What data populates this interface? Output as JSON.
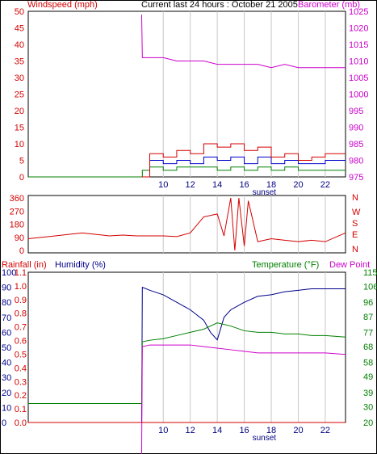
{
  "header": {
    "windspeed_label": "Windspeed (mph)",
    "title": "Current last 24 hours : October 21 2005",
    "barometer_label": "Barometer (mb)",
    "rainfall_label": "Rainfall (in)",
    "humidity_label": "Humidity (%)",
    "temperature_label": "Temperature (°F)",
    "dewpoint_label": "Dew Point"
  },
  "colors": {
    "wind": "#d40000",
    "barometer": "#cc00cc",
    "gust": "#0000cc",
    "wind_avg": "#008000",
    "direction": "#d40000",
    "humidity": "#00008b",
    "temperature": "#008000",
    "dewpoint": "#cc00cc",
    "rain": "#d40000",
    "grid": "#c8c8c8"
  },
  "chart_data": [
    {
      "id": "wind-barometer",
      "type": "line",
      "x_ticks": [
        "10",
        "12",
        "14",
        "16",
        "18",
        "20",
        "22"
      ],
      "x_annotation": "sunset",
      "left_axis": {
        "ticks": [
          "0",
          "5",
          "10",
          "15",
          "20",
          "25",
          "30",
          "35",
          "40",
          "45",
          "50"
        ],
        "ylim": [
          0,
          50
        ]
      },
      "right_axis": {
        "ticks": [
          "975",
          "980",
          "985",
          "990",
          "995",
          "1000",
          "1005",
          "1010",
          "1015",
          "1020",
          "1025"
        ],
        "ylim": [
          975,
          1025
        ]
      },
      "left_axis_mid_ticks": [
        "0",
        "5",
        "10",
        "15",
        "20",
        "25",
        "30",
        "35",
        "40",
        "45",
        "50"
      ],
      "lower_band_ticks": [
        "0",
        "5",
        "10",
        "15",
        "20",
        "25",
        "30",
        "35",
        "40",
        "45",
        "50"
      ],
      "series": [
        {
          "key": "barometer",
          "axis": "right",
          "x": [
            8.4,
            8.45,
            9,
            10,
            11,
            12,
            13,
            14,
            15,
            16,
            17,
            18,
            19,
            20,
            21,
            22,
            23.5
          ],
          "values": [
            1024,
            1011,
            1011,
            1011,
            1010,
            1010,
            1010,
            1009,
            1009,
            1009,
            1009,
            1008,
            1009,
            1008,
            1008,
            1008,
            1008
          ]
        },
        {
          "key": "wind_avg",
          "axis": "left",
          "x": [
            0,
            8.4,
            8.45,
            9,
            10,
            11,
            12,
            13,
            14,
            15,
            16,
            17,
            18,
            19,
            20,
            21,
            22,
            23.5
          ],
          "values": [
            0,
            0,
            2,
            3,
            2,
            3,
            3,
            3,
            2,
            3,
            2,
            3,
            2,
            3,
            2,
            2,
            2,
            2
          ]
        },
        {
          "key": "gust",
          "axis": "left",
          "x": [
            8.4,
            9,
            10,
            11,
            12,
            13,
            14,
            15,
            16,
            17,
            18,
            19,
            20,
            21,
            22,
            23.5
          ],
          "values": [
            0,
            5,
            4,
            5,
            4,
            6,
            5,
            6,
            4,
            6,
            4,
            5,
            4,
            4,
            5,
            5
          ]
        },
        {
          "key": "wind",
          "axis": "left",
          "x": [
            8.4,
            9,
            10,
            11,
            12,
            13,
            14,
            15,
            16,
            17,
            18,
            19,
            20,
            21,
            22,
            23.5
          ],
          "values": [
            0,
            7,
            6,
            8,
            7,
            10,
            9,
            10,
            8,
            9,
            6,
            7,
            5,
            6,
            7,
            7
          ]
        }
      ]
    },
    {
      "id": "wind-direction",
      "type": "line",
      "x_ticks": [
        "10",
        "12",
        "14",
        "16",
        "18",
        "20",
        "22"
      ],
      "y_ticks": [
        "360",
        "270",
        "180",
        "90",
        "0"
      ],
      "compass_labels": [
        "N",
        "W",
        "S",
        "E",
        "N"
      ],
      "ylim": [
        0,
        360
      ],
      "series": [
        {
          "key": "direction",
          "x": [
            0,
            1,
            2,
            3,
            4,
            5,
            6,
            7,
            8,
            9,
            10,
            11,
            12,
            13,
            14,
            14.5,
            15,
            15.3,
            15.6,
            16,
            16.3,
            17,
            18,
            19,
            20,
            21,
            22,
            23.5
          ],
          "values": [
            80,
            90,
            100,
            110,
            120,
            110,
            100,
            105,
            100,
            100,
            100,
            95,
            120,
            230,
            250,
            100,
            360,
            0,
            360,
            30,
            340,
            60,
            80,
            70,
            60,
            70,
            60,
            120
          ]
        }
      ]
    },
    {
      "id": "humidity-temperature",
      "type": "line",
      "x_ticks": [
        "10",
        "12",
        "14",
        "16",
        "18",
        "20",
        "22"
      ],
      "x_annotation": "sunset",
      "humidity_axis": {
        "ticks": [
          "0",
          "10",
          "20",
          "30",
          "40",
          "50",
          "60",
          "70",
          "80",
          "90",
          "100"
        ],
        "ylim": [
          0,
          100
        ]
      },
      "rain_axis": {
        "ticks": [
          "0.0",
          "0.1",
          "0.2",
          "0.3",
          "0.4",
          "0.5",
          "0.6",
          "0.7",
          "0.8",
          "0.9",
          "1.0",
          "1.1"
        ],
        "ylim": [
          0,
          1.1
        ]
      },
      "temp_axis": {
        "ticks": [
          "20",
          "30",
          "39",
          "49",
          "58",
          "68",
          "77",
          "87",
          "96",
          "106",
          "115"
        ],
        "ylim": [
          20,
          115
        ]
      },
      "series": [
        {
          "key": "humidity",
          "axis": "humidity",
          "x": [
            8.4,
            8.45,
            9,
            10,
            11,
            12,
            13,
            13.5,
            14,
            14.5,
            15,
            16,
            17,
            18,
            19,
            20,
            21,
            22,
            23.5
          ],
          "values": [
            0,
            90,
            88,
            85,
            80,
            75,
            68,
            60,
            55,
            70,
            75,
            80,
            84,
            85,
            87,
            88,
            89,
            89,
            89
          ]
        },
        {
          "key": "temperature",
          "axis": "temp",
          "x": [
            0,
            8.4,
            8.45,
            9,
            10,
            11,
            12,
            13,
            14,
            15,
            16,
            17,
            18,
            19,
            20,
            21,
            22,
            23.5
          ],
          "values": [
            32,
            32,
            71,
            72,
            73,
            75,
            77,
            79,
            83,
            81,
            78,
            77,
            77,
            76,
            76,
            75,
            75,
            74
          ]
        },
        {
          "key": "dewpoint",
          "axis": "temp",
          "x": [
            8.4,
            8.45,
            9,
            10,
            11,
            12,
            13,
            14,
            15,
            16,
            17,
            18,
            19,
            20,
            21,
            22,
            23.5
          ],
          "values": [
            0,
            68,
            69,
            69,
            69,
            69,
            68,
            67,
            66,
            65,
            64,
            64,
            64,
            64,
            64,
            64,
            63
          ]
        },
        {
          "key": "rain",
          "axis": "rain",
          "x": [
            0,
            23.5
          ],
          "values": [
            0,
            0
          ]
        }
      ]
    }
  ]
}
